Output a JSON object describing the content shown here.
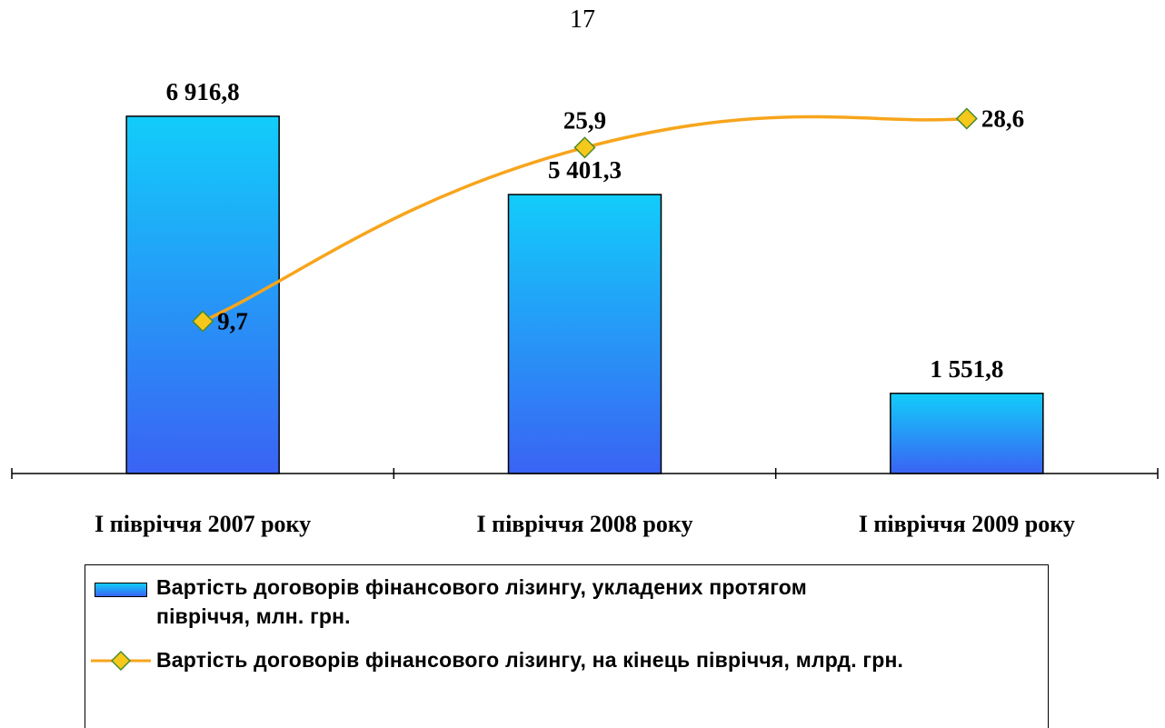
{
  "page_number": "17",
  "colors": {
    "bar_top": "#12cdfa",
    "bar_bottom": "#3a63f4",
    "line": "#f7a51c",
    "marker_fill": "#f7c81c",
    "marker_stroke": "#4a8a2a"
  },
  "chart_data": {
    "type": "bar",
    "categories": [
      "I півріччя 2007 року",
      "I півріччя 2008 року",
      "I півріччя 2009 року"
    ],
    "series": [
      {
        "name": "Вартість договорів фінансового лізингу, укладених протягом півріччя, млн. грн.",
        "type": "bar",
        "axis": "primary",
        "values": [
          6916.8,
          5401.3,
          1551.8
        ],
        "labels": [
          "6 916,8",
          "5 401,3",
          "1 551,8"
        ]
      },
      {
        "name": "Вартість договорів фінансового лізингу, на кінець півріччя, млрд. грн.",
        "type": "line",
        "axis": "secondary",
        "smooth": true,
        "marker": "diamond",
        "values": [
          9.7,
          25.9,
          28.6
        ],
        "labels": [
          "9,7",
          "25,9",
          "28,6"
        ]
      }
    ],
    "primary_ylim": [
      0,
      8200
    ],
    "secondary_ylim": [
      -4.5,
      35
    ],
    "grid": false,
    "legend_position": "bottom"
  },
  "legend": {
    "bar_label_line1": "Вартість договорів фінансового лізингу, укладених протягом",
    "bar_label_line2": "півріччя, млн. грн.",
    "line_label": "Вартість договорів фінансового лізингу, на кінець півріччя, млрд. грн."
  }
}
